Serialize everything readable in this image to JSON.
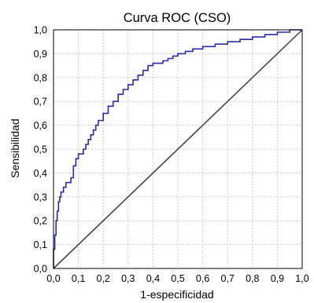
{
  "chart_data": {
    "type": "line",
    "title": "Curva ROC (CSO)",
    "xlabel": "1-especificidad",
    "ylabel": "Sensibilidad",
    "xlim": [
      0,
      1
    ],
    "ylim": [
      0,
      1
    ],
    "x_ticks": [
      "0,0",
      "0,1",
      "0,2",
      "0,3",
      "0,4",
      "0,5",
      "0,6",
      "0,7",
      "0,8",
      "0,9",
      "1,0"
    ],
    "y_ticks": [
      "0,0",
      "0,1",
      "0,2",
      "0,3",
      "0,4",
      "0,5",
      "0,6",
      "0,7",
      "0,8",
      "0,9",
      "1,0"
    ],
    "grid": true,
    "colors": {
      "roc": "#2a2aa8",
      "reference": "#444444",
      "grid": "#c8c8c8"
    },
    "series": [
      {
        "x": [
          0.0,
          0.0,
          0.005,
          0.005,
          0.01,
          0.01,
          0.015,
          0.015,
          0.02,
          0.02,
          0.025,
          0.025,
          0.03,
          0.03,
          0.04,
          0.04,
          0.05,
          0.05,
          0.07,
          0.07,
          0.08,
          0.08,
          0.09,
          0.09,
          0.1,
          0.1,
          0.12,
          0.12,
          0.13,
          0.13,
          0.14,
          0.14,
          0.15,
          0.15,
          0.16,
          0.16,
          0.17,
          0.17,
          0.18,
          0.18,
          0.2,
          0.2,
          0.22,
          0.22,
          0.24,
          0.24,
          0.26,
          0.26,
          0.28,
          0.28,
          0.3,
          0.3,
          0.32,
          0.32,
          0.34,
          0.34,
          0.36,
          0.36,
          0.38,
          0.38,
          0.4,
          0.4,
          0.44,
          0.44,
          0.46,
          0.46,
          0.48,
          0.48,
          0.5,
          0.5,
          0.53,
          0.53,
          0.56,
          0.56,
          0.6,
          0.6,
          0.65,
          0.65,
          0.7,
          0.7,
          0.75,
          0.75,
          0.8,
          0.8,
          0.85,
          0.85,
          0.9,
          0.9,
          0.95,
          0.95,
          1.0
        ],
        "y": [
          0.0,
          0.08,
          0.08,
          0.14,
          0.14,
          0.2,
          0.2,
          0.24,
          0.24,
          0.28,
          0.28,
          0.3,
          0.3,
          0.32,
          0.32,
          0.34,
          0.34,
          0.36,
          0.36,
          0.38,
          0.38,
          0.43,
          0.43,
          0.46,
          0.46,
          0.48,
          0.48,
          0.5,
          0.5,
          0.52,
          0.52,
          0.54,
          0.54,
          0.56,
          0.56,
          0.58,
          0.58,
          0.6,
          0.6,
          0.62,
          0.62,
          0.65,
          0.65,
          0.68,
          0.68,
          0.7,
          0.7,
          0.73,
          0.73,
          0.75,
          0.75,
          0.77,
          0.77,
          0.79,
          0.79,
          0.81,
          0.81,
          0.83,
          0.83,
          0.85,
          0.85,
          0.86,
          0.86,
          0.87,
          0.87,
          0.88,
          0.88,
          0.89,
          0.89,
          0.9,
          0.9,
          0.91,
          0.91,
          0.92,
          0.92,
          0.93,
          0.93,
          0.94,
          0.94,
          0.95,
          0.95,
          0.96,
          0.96,
          0.97,
          0.97,
          0.98,
          0.98,
          0.99,
          0.99,
          1.0,
          1.0
        ]
      },
      {
        "x": [
          0,
          1
        ],
        "y": [
          0,
          1
        ]
      }
    ]
  }
}
